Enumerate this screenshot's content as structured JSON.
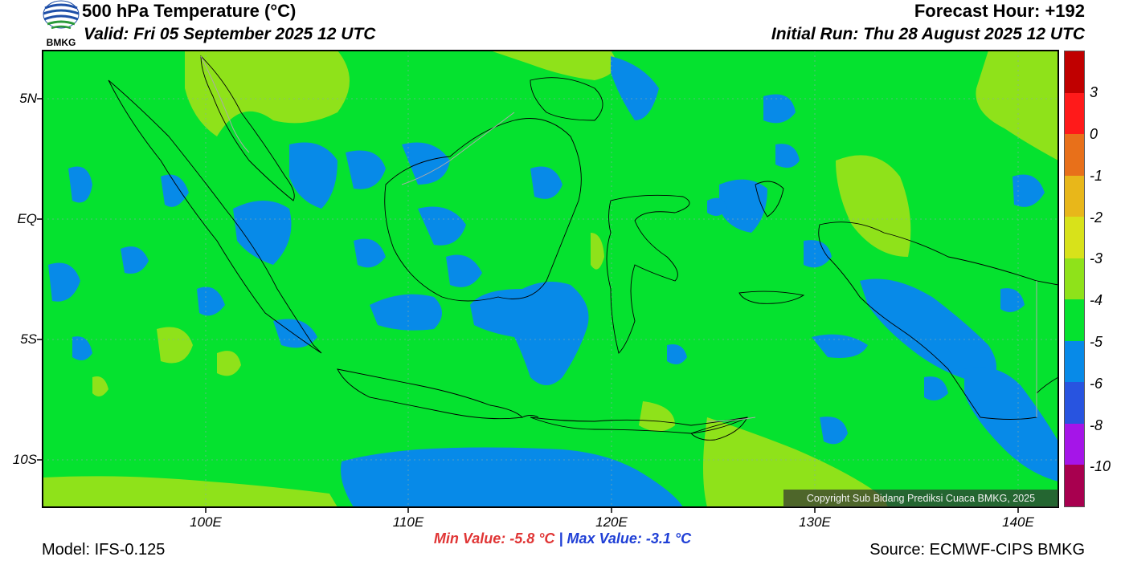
{
  "header": {
    "title": "500 hPa Temperature (°C)",
    "valid": "Valid: Fri 05 September 2025 12 UTC",
    "forecast_hour": "Forecast Hour: +192",
    "initial_run": "Initial Run: Thu 28 August 2025 12 UTC",
    "logo_text": "BMKG"
  },
  "map": {
    "lat_ticks": [
      "5N",
      "EQ",
      "5S",
      "10S"
    ],
    "lon_ticks": [
      "100E",
      "110E",
      "120E",
      "130E",
      "140E"
    ],
    "copyright": "Copyright Sub Bidang Prediksi Cuaca BMKG, 2025",
    "background_color": "#05e22f"
  },
  "colorbar": {
    "labels": [
      "3",
      "0",
      "-1",
      "-2",
      "-3",
      "-4",
      "-5",
      "-6",
      "-8",
      "-10"
    ],
    "colors": [
      "#c00000",
      "#ff1a1a",
      "#e8701a",
      "#e8b71a",
      "#d8e21a",
      "#8fe21a",
      "#05e22f",
      "#078ae8",
      "#2854e0",
      "#a515e8",
      "#a8004f"
    ]
  },
  "footer": {
    "min_value": "Min Value: -5.8 °C",
    "separator": "|",
    "max_value": "Max Value: -3.1 °C",
    "model": "Model: IFS-0.125",
    "source": "Source: ECMWF-CIPS BMKG"
  }
}
